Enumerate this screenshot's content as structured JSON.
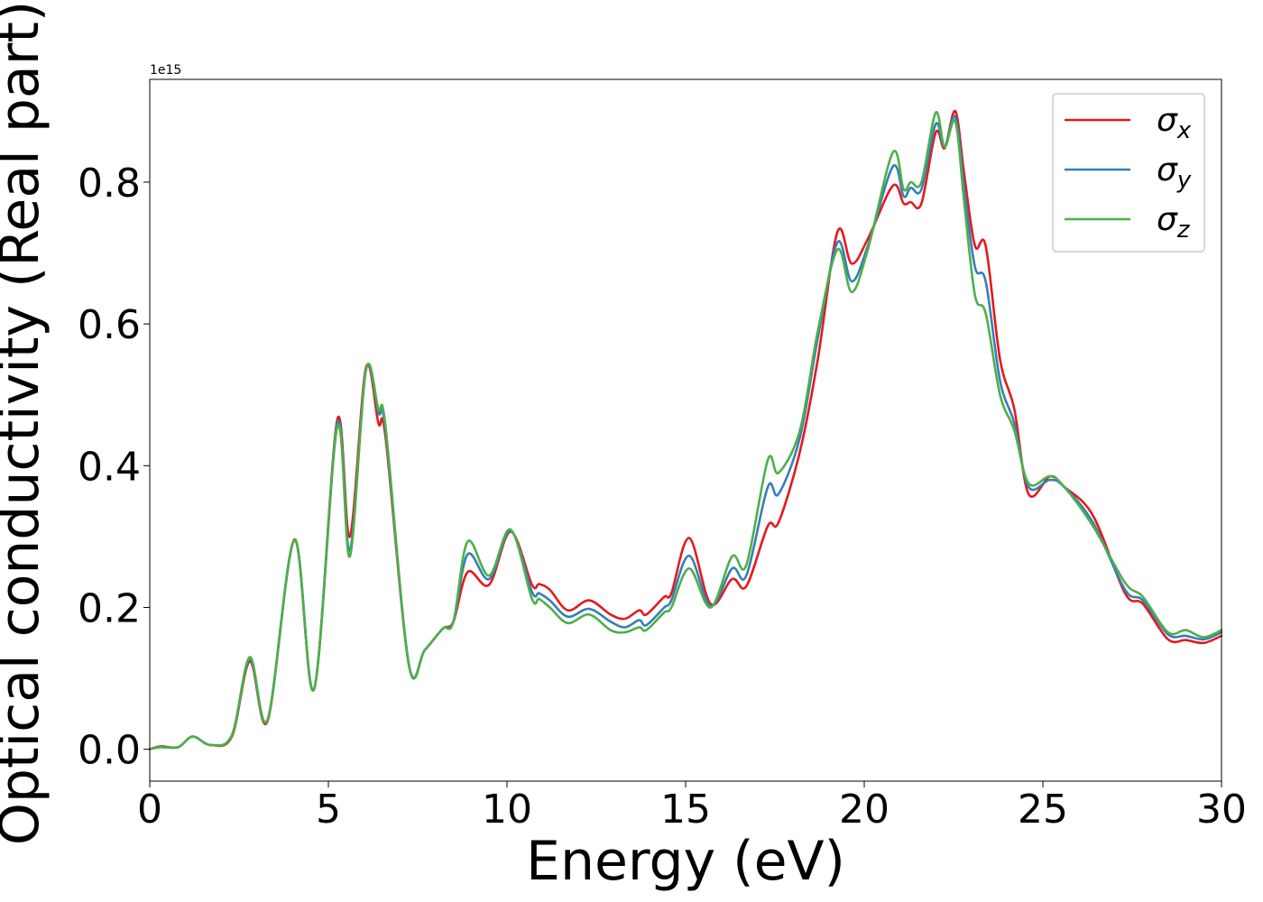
{
  "chart_data": {
    "type": "line",
    "xlabel": "Energy (eV)",
    "ylabel": "Optical conductivity (Real part)",
    "y_offset_label": "1e15",
    "xlim": [
      0,
      30
    ],
    "ylim": [
      -0.045,
      0.945
    ],
    "x_ticks": [
      0,
      5,
      10,
      15,
      20,
      25,
      30
    ],
    "y_ticks": [
      0.0,
      0.2,
      0.4,
      0.6,
      0.8
    ],
    "x_tick_labels": [
      "0",
      "5",
      "10",
      "15",
      "20",
      "25",
      "30"
    ],
    "y_tick_labels": [
      "0.0",
      "0.2",
      "0.4",
      "0.6",
      "0.8"
    ],
    "grid": false,
    "legend_position": "top-right",
    "series": [
      {
        "symbol": "σ",
        "subscript": "x",
        "color": "#e41a1c",
        "points": [
          [
            0,
            0.0
          ],
          [
            0.3,
            0.004
          ],
          [
            0.8,
            0.003
          ],
          [
            1.2,
            0.018
          ],
          [
            1.7,
            0.006
          ],
          [
            2.3,
            0.018
          ],
          [
            2.8,
            0.124
          ],
          [
            3.3,
            0.04
          ],
          [
            4.05,
            0.295
          ],
          [
            4.6,
            0.085
          ],
          [
            5.25,
            0.465
          ],
          [
            5.6,
            0.3
          ],
          [
            6.05,
            0.538
          ],
          [
            6.4,
            0.46
          ],
          [
            6.6,
            0.44
          ],
          [
            7.25,
            0.12
          ],
          [
            7.7,
            0.14
          ],
          [
            8.2,
            0.17
          ],
          [
            8.5,
            0.18
          ],
          [
            8.9,
            0.25
          ],
          [
            9.5,
            0.232
          ],
          [
            10.1,
            0.307
          ],
          [
            10.7,
            0.232
          ],
          [
            10.9,
            0.233
          ],
          [
            11.2,
            0.225
          ],
          [
            11.7,
            0.196
          ],
          [
            12.3,
            0.21
          ],
          [
            12.9,
            0.19
          ],
          [
            13.3,
            0.184
          ],
          [
            13.7,
            0.196
          ],
          [
            13.9,
            0.19
          ],
          [
            14.4,
            0.215
          ],
          [
            14.6,
            0.22
          ],
          [
            15.1,
            0.298
          ],
          [
            15.7,
            0.205
          ],
          [
            16.3,
            0.24
          ],
          [
            16.7,
            0.23
          ],
          [
            17.3,
            0.315
          ],
          [
            17.6,
            0.32
          ],
          [
            18.2,
            0.42
          ],
          [
            18.7,
            0.55
          ],
          [
            19.25,
            0.73
          ],
          [
            19.65,
            0.685
          ],
          [
            20.1,
            0.72
          ],
          [
            20.8,
            0.795
          ],
          [
            21.1,
            0.77
          ],
          [
            21.3,
            0.772
          ],
          [
            21.6,
            0.77
          ],
          [
            22.0,
            0.87
          ],
          [
            22.25,
            0.848
          ],
          [
            22.55,
            0.9
          ],
          [
            22.8,
            0.81
          ],
          [
            23.1,
            0.71
          ],
          [
            23.4,
            0.71
          ],
          [
            23.8,
            0.55
          ],
          [
            24.2,
            0.48
          ],
          [
            24.6,
            0.36
          ],
          [
            25.2,
            0.385
          ],
          [
            25.6,
            0.37
          ],
          [
            26.4,
            0.33
          ],
          [
            27.3,
            0.22
          ],
          [
            27.8,
            0.205
          ],
          [
            28.5,
            0.155
          ],
          [
            29.0,
            0.154
          ],
          [
            29.5,
            0.15
          ],
          [
            30,
            0.16
          ]
        ]
      },
      {
        "symbol": "σ",
        "subscript": "y",
        "color": "#377eb8",
        "points": [
          [
            0,
            0.0
          ],
          [
            0.3,
            0.003
          ],
          [
            0.8,
            0.003
          ],
          [
            1.2,
            0.018
          ],
          [
            1.7,
            0.006
          ],
          [
            2.3,
            0.02
          ],
          [
            2.8,
            0.128
          ],
          [
            3.3,
            0.042
          ],
          [
            4.05,
            0.296
          ],
          [
            4.6,
            0.085
          ],
          [
            5.25,
            0.46
          ],
          [
            5.6,
            0.28
          ],
          [
            6.05,
            0.535
          ],
          [
            6.4,
            0.475
          ],
          [
            6.6,
            0.45
          ],
          [
            7.25,
            0.12
          ],
          [
            7.7,
            0.14
          ],
          [
            8.2,
            0.17
          ],
          [
            8.5,
            0.18
          ],
          [
            8.9,
            0.275
          ],
          [
            9.5,
            0.24
          ],
          [
            10.1,
            0.308
          ],
          [
            10.7,
            0.222
          ],
          [
            10.9,
            0.22
          ],
          [
            11.2,
            0.21
          ],
          [
            11.7,
            0.187
          ],
          [
            12.3,
            0.198
          ],
          [
            12.9,
            0.18
          ],
          [
            13.3,
            0.172
          ],
          [
            13.7,
            0.182
          ],
          [
            13.9,
            0.175
          ],
          [
            14.4,
            0.2
          ],
          [
            14.6,
            0.21
          ],
          [
            15.1,
            0.273
          ],
          [
            15.7,
            0.202
          ],
          [
            16.3,
            0.255
          ],
          [
            16.7,
            0.245
          ],
          [
            17.3,
            0.37
          ],
          [
            17.6,
            0.36
          ],
          [
            18.2,
            0.44
          ],
          [
            18.7,
            0.58
          ],
          [
            19.25,
            0.715
          ],
          [
            19.65,
            0.66
          ],
          [
            20.1,
            0.71
          ],
          [
            20.8,
            0.822
          ],
          [
            21.1,
            0.78
          ],
          [
            21.3,
            0.792
          ],
          [
            21.6,
            0.79
          ],
          [
            22.0,
            0.882
          ],
          [
            22.25,
            0.85
          ],
          [
            22.55,
            0.892
          ],
          [
            22.8,
            0.79
          ],
          [
            23.1,
            0.68
          ],
          [
            23.4,
            0.66
          ],
          [
            23.8,
            0.52
          ],
          [
            24.2,
            0.46
          ],
          [
            24.6,
            0.37
          ],
          [
            25.2,
            0.38
          ],
          [
            25.6,
            0.37
          ],
          [
            26.4,
            0.32
          ],
          [
            27.3,
            0.225
          ],
          [
            27.8,
            0.21
          ],
          [
            28.5,
            0.162
          ],
          [
            29.0,
            0.16
          ],
          [
            29.5,
            0.155
          ],
          [
            30,
            0.165
          ]
        ]
      },
      {
        "symbol": "σ",
        "subscript": "z",
        "color": "#4daf4a",
        "points": [
          [
            0,
            0.0
          ],
          [
            0.3,
            0.003
          ],
          [
            0.8,
            0.003
          ],
          [
            1.2,
            0.018
          ],
          [
            1.7,
            0.006
          ],
          [
            2.3,
            0.02
          ],
          [
            2.8,
            0.13
          ],
          [
            3.3,
            0.042
          ],
          [
            4.05,
            0.296
          ],
          [
            4.6,
            0.085
          ],
          [
            5.25,
            0.455
          ],
          [
            5.6,
            0.272
          ],
          [
            6.05,
            0.535
          ],
          [
            6.4,
            0.48
          ],
          [
            6.6,
            0.455
          ],
          [
            7.25,
            0.12
          ],
          [
            7.7,
            0.14
          ],
          [
            8.2,
            0.17
          ],
          [
            8.5,
            0.18
          ],
          [
            8.9,
            0.293
          ],
          [
            9.5,
            0.245
          ],
          [
            10.1,
            0.31
          ],
          [
            10.7,
            0.212
          ],
          [
            10.9,
            0.212
          ],
          [
            11.2,
            0.2
          ],
          [
            11.7,
            0.178
          ],
          [
            12.3,
            0.19
          ],
          [
            12.9,
            0.168
          ],
          [
            13.3,
            0.165
          ],
          [
            13.7,
            0.172
          ],
          [
            13.9,
            0.168
          ],
          [
            14.4,
            0.193
          ],
          [
            14.6,
            0.2
          ],
          [
            15.1,
            0.255
          ],
          [
            15.7,
            0.2
          ],
          [
            16.3,
            0.272
          ],
          [
            16.7,
            0.26
          ],
          [
            17.3,
            0.408
          ],
          [
            17.6,
            0.39
          ],
          [
            18.2,
            0.45
          ],
          [
            18.7,
            0.59
          ],
          [
            19.25,
            0.705
          ],
          [
            19.65,
            0.645
          ],
          [
            20.1,
            0.705
          ],
          [
            20.8,
            0.842
          ],
          [
            21.1,
            0.79
          ],
          [
            21.3,
            0.8
          ],
          [
            21.6,
            0.8
          ],
          [
            22.0,
            0.898
          ],
          [
            22.25,
            0.85
          ],
          [
            22.55,
            0.885
          ],
          [
            22.8,
            0.77
          ],
          [
            23.1,
            0.64
          ],
          [
            23.4,
            0.615
          ],
          [
            23.8,
            0.5
          ],
          [
            24.2,
            0.45
          ],
          [
            24.6,
            0.375
          ],
          [
            25.2,
            0.385
          ],
          [
            25.6,
            0.37
          ],
          [
            26.4,
            0.315
          ],
          [
            27.3,
            0.235
          ],
          [
            27.8,
            0.215
          ],
          [
            28.5,
            0.165
          ],
          [
            29.0,
            0.168
          ],
          [
            29.5,
            0.158
          ],
          [
            30,
            0.168
          ]
        ]
      }
    ]
  }
}
